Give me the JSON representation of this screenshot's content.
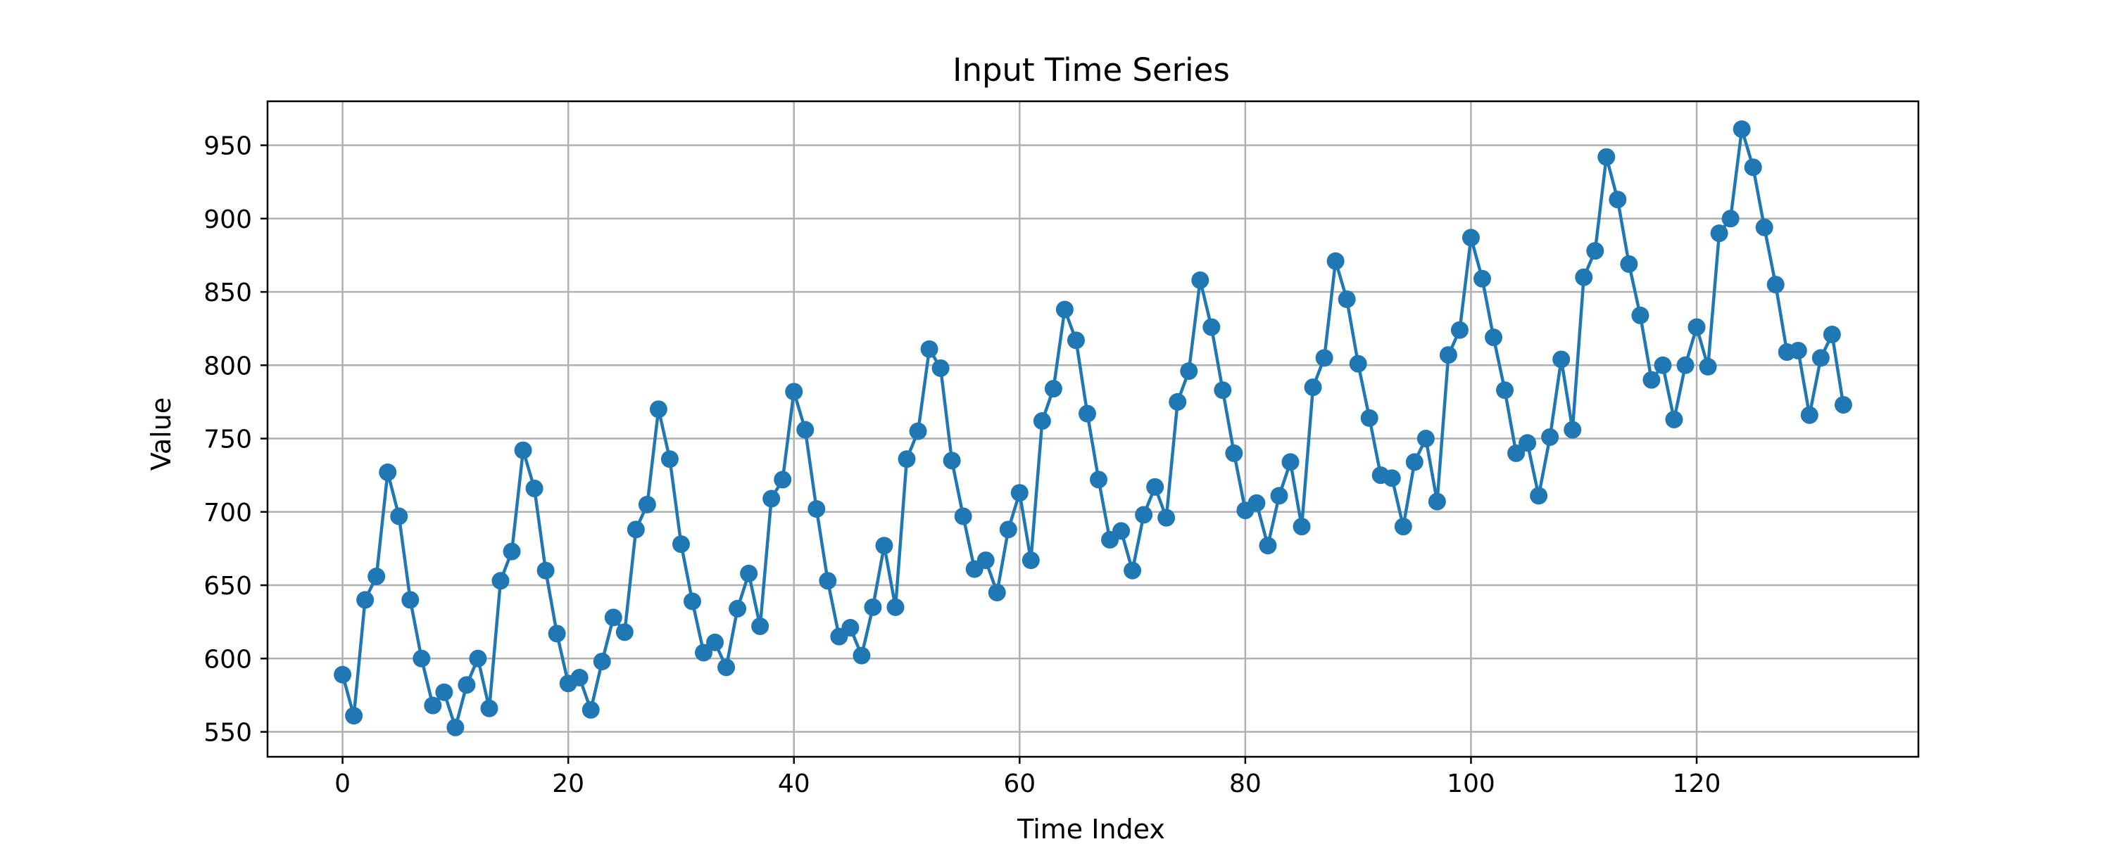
{
  "chart_data": {
    "type": "line",
    "title": "Input Time Series",
    "xlabel": "Time Index",
    "ylabel": "Value",
    "xlim": [
      -6.65,
      139.65
    ],
    "ylim": [
      533,
      980
    ],
    "xticks": [
      0,
      20,
      40,
      60,
      80,
      100,
      120
    ],
    "yticks": [
      550,
      600,
      650,
      700,
      750,
      800,
      850,
      900,
      950
    ],
    "grid": true,
    "legend": "none",
    "colors": {
      "series": "#1f77b4",
      "grid": "#b0b0b0",
      "axes": "#000000"
    },
    "markers": "circle",
    "series": [
      {
        "x": [
          0,
          1,
          2,
          3,
          4,
          5,
          6,
          7,
          8,
          9,
          10,
          11,
          12,
          13,
          14,
          15,
          16,
          17,
          18,
          19,
          20,
          21,
          22,
          23,
          24,
          25,
          26,
          27,
          28,
          29,
          30,
          31,
          32,
          33,
          34,
          35,
          36,
          37,
          38,
          39,
          40,
          41,
          42,
          43,
          44,
          45,
          46,
          47,
          48,
          49,
          50,
          51,
          52,
          53,
          54,
          55,
          56,
          57,
          58,
          59,
          60,
          61,
          62,
          63,
          64,
          65,
          66,
          67,
          68,
          69,
          70,
          71,
          72,
          73,
          74,
          75,
          76,
          77,
          78,
          79,
          80,
          81,
          82,
          83,
          84,
          85,
          86,
          87,
          88,
          89,
          90,
          91,
          92,
          93,
          94,
          95,
          96,
          97,
          98,
          99,
          100,
          101,
          102,
          103,
          104,
          105,
          106,
          107,
          108,
          109,
          110,
          111,
          112,
          113,
          114,
          115,
          116,
          117,
          118,
          119,
          120,
          121,
          122,
          123,
          124,
          125,
          126,
          127,
          128,
          129,
          130,
          131,
          132,
          133
        ],
        "values": [
          589,
          561,
          640,
          656,
          727,
          697,
          640,
          600,
          568,
          577,
          553,
          582,
          600,
          566,
          653,
          673,
          742,
          716,
          660,
          617,
          583,
          587,
          565,
          598,
          628,
          618,
          688,
          705,
          770,
          736,
          678,
          639,
          604,
          611,
          594,
          634,
          658,
          622,
          709,
          722,
          782,
          756,
          702,
          653,
          615,
          621,
          602,
          635,
          677,
          635,
          736,
          755,
          811,
          798,
          735,
          697,
          661,
          667,
          645,
          688,
          713,
          667,
          762,
          784,
          838,
          817,
          767,
          722,
          681,
          687,
          660,
          698,
          717,
          696,
          775,
          796,
          858,
          826,
          783,
          740,
          701,
          706,
          677,
          711,
          734,
          690,
          785,
          805,
          871,
          845,
          801,
          764,
          725,
          723,
          690,
          734,
          750,
          707,
          807,
          824,
          887,
          859,
          819,
          783,
          740,
          747,
          711,
          751,
          804,
          756,
          860,
          878,
          942,
          913,
          869,
          834,
          790,
          800,
          763,
          800,
          826,
          799,
          890,
          900,
          961,
          935,
          894,
          855,
          809,
          810,
          766,
          805,
          821,
          773
        ]
      }
    ]
  }
}
